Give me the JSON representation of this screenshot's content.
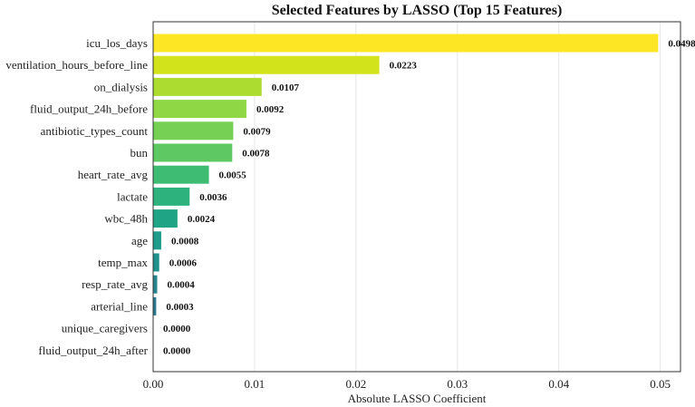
{
  "chart_data": {
    "type": "bar",
    "orientation": "horizontal",
    "title": "Selected Features by LASSO (Top 15 Features)",
    "xlabel": "Absolute LASSO Coefficient",
    "ylabel": "",
    "xlim": [
      0,
      0.052
    ],
    "xticks": [
      0.0,
      0.01,
      0.02,
      0.03,
      0.04,
      0.05
    ],
    "xtick_labels": [
      "0.00",
      "0.01",
      "0.02",
      "0.03",
      "0.04",
      "0.05"
    ],
    "grid": "vertical, light",
    "categories": [
      "icu_los_days",
      "ventilation_hours_before_line",
      "on_dialysis",
      "fluid_output_24h_before",
      "antibiotic_types_count",
      "bun",
      "heart_rate_avg",
      "lactate",
      "wbc_48h",
      "age",
      "temp_max",
      "resp_rate_avg",
      "arterial_line",
      "unique_caregivers",
      "fluid_output_24h_after"
    ],
    "values": [
      0.0498,
      0.0223,
      0.0107,
      0.0092,
      0.0079,
      0.0078,
      0.0055,
      0.0036,
      0.0024,
      0.0008,
      0.0006,
      0.0004,
      0.0003,
      0.0,
      0.0
    ],
    "value_labels": [
      "0.0498",
      "0.0223",
      "0.0107",
      "0.0092",
      "0.0079",
      "0.0078",
      "0.0055",
      "0.0036",
      "0.0024",
      "0.0008",
      "0.0006",
      "0.0004",
      "0.0003",
      "0.0000",
      "0.0000"
    ],
    "colors": [
      "#fde725",
      "#d2e21b",
      "#addc30",
      "#8fd744",
      "#75d054",
      "#5ec962",
      "#3fbc73",
      "#2db27d",
      "#20a486",
      "#1e9b8a",
      "#21918c",
      "#25848e",
      "#2a788e",
      "#306a8e",
      "#365c8d"
    ]
  }
}
